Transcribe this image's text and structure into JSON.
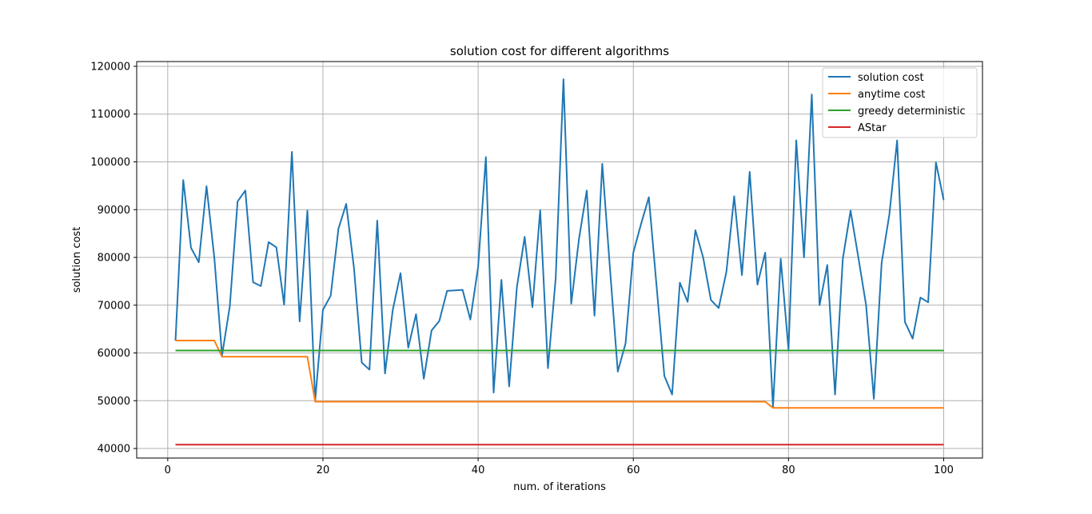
{
  "chart_data": {
    "type": "line",
    "title": "solution cost for different algorithms",
    "xlabel": "num. of iterations",
    "ylabel": "solution cost",
    "xlim": [
      -4,
      105
    ],
    "ylim": [
      38000,
      121000
    ],
    "xticks": [
      0,
      20,
      40,
      60,
      80,
      100
    ],
    "yticks": [
      40000,
      50000,
      60000,
      70000,
      80000,
      90000,
      100000,
      110000,
      120000
    ],
    "grid": true,
    "legend_position": "top-right",
    "series": [
      {
        "name": "solution cost",
        "color": "#1f77b4",
        "x": [
          1,
          2,
          3,
          4,
          5,
          6,
          7,
          8,
          9,
          10,
          11,
          12,
          13,
          14,
          15,
          16,
          17,
          18,
          19,
          20,
          21,
          22,
          23,
          24,
          25,
          26,
          27,
          28,
          29,
          30,
          31,
          32,
          33,
          34,
          35,
          36,
          37,
          38,
          39,
          40,
          41,
          42,
          43,
          44,
          45,
          46,
          47,
          48,
          49,
          50,
          51,
          52,
          53,
          54,
          55,
          56,
          57,
          58,
          59,
          60,
          61,
          62,
          63,
          64,
          65,
          66,
          67,
          68,
          69,
          70,
          71,
          72,
          73,
          74,
          75,
          76,
          77,
          78,
          79,
          80,
          81,
          82,
          83,
          84,
          85,
          86,
          87,
          88,
          89,
          90,
          91,
          92,
          93,
          94,
          95,
          96,
          97,
          98,
          99,
          100
        ],
        "values": [
          62600,
          96200,
          82000,
          79000,
          94900,
          80000,
          59500,
          69800,
          91700,
          94000,
          74800,
          74000,
          83200,
          82100,
          70100,
          102100,
          66600,
          89800,
          50000,
          69000,
          72000,
          86000,
          91200,
          77800,
          58000,
          56500,
          87700,
          55700,
          69000,
          76700,
          61100,
          68100,
          54600,
          64700,
          66700,
          73000,
          73100,
          73200,
          67000,
          78000,
          101000,
          51700,
          75300,
          53000,
          73800,
          84300,
          69600,
          89900,
          56800,
          75700,
          117300,
          70300,
          83900,
          94000,
          67800,
          99600,
          77500,
          56100,
          62000,
          81000,
          87000,
          92600,
          74000,
          55200,
          51300,
          74700,
          70700,
          85700,
          80000,
          71100,
          69400,
          77000,
          92800,
          76300,
          97900,
          74300,
          81000,
          48600,
          79700,
          60700,
          104500,
          80000,
          114100,
          70000,
          78400,
          51300,
          79700,
          89800,
          80000,
          70000,
          50400,
          78800,
          89000,
          104500,
          66500,
          63000,
          71600,
          70600,
          99900,
          92000
        ]
      },
      {
        "name": "anytime cost",
        "color": "#ff7f0e",
        "x": [
          1,
          6,
          7,
          18,
          19,
          77,
          78,
          100
        ],
        "values": [
          62600,
          62600,
          59200,
          59200,
          49800,
          49800,
          48500,
          48500
        ]
      },
      {
        "name": "greedy deterministic",
        "color": "#2ca02c",
        "x": [
          1,
          100
        ],
        "values": [
          60500,
          60500
        ]
      },
      {
        "name": "AStar",
        "color": "#d62728",
        "x": [
          1,
          100
        ],
        "values": [
          40800,
          40800
        ]
      }
    ]
  }
}
